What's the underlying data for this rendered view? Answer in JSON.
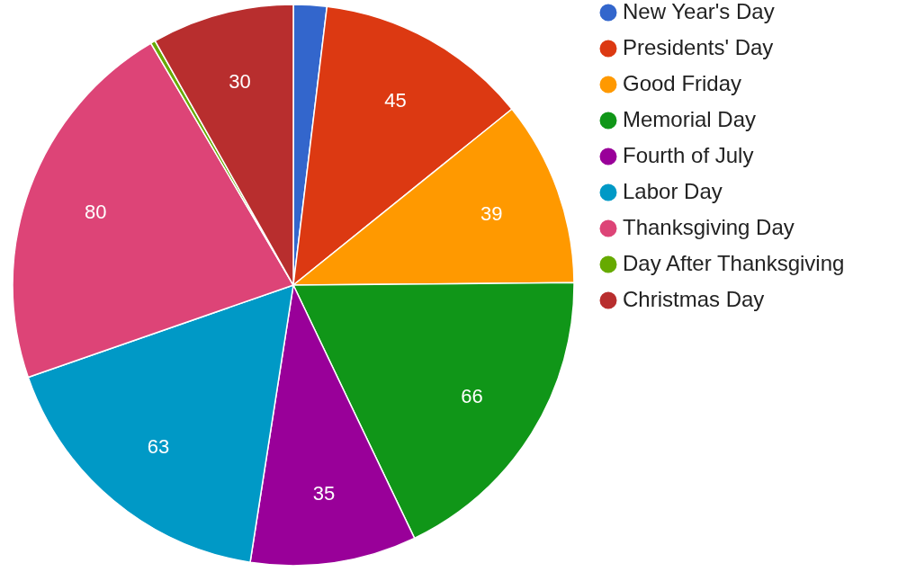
{
  "chart_data": {
    "type": "pie",
    "categories": [
      "New Year's Day",
      "Presidents' Day",
      "Good Friday",
      "Memorial Day",
      "Fourth of July",
      "Labor Day",
      "Thanksgiving Day",
      "Day After Thanksgiving",
      "Christmas Day"
    ],
    "values": [
      7,
      45,
      39,
      66,
      35,
      63,
      80,
      1,
      30
    ],
    "value_labels": [
      null,
      "45",
      "39",
      "66",
      "35",
      "63",
      "80",
      null,
      "30"
    ],
    "colors": [
      "#3366cc",
      "#dc3912",
      "#ff9900",
      "#109618",
      "#990099",
      "#0099c6",
      "#dd4477",
      "#66aa00",
      "#b82e2e"
    ],
    "legend": "right"
  }
}
